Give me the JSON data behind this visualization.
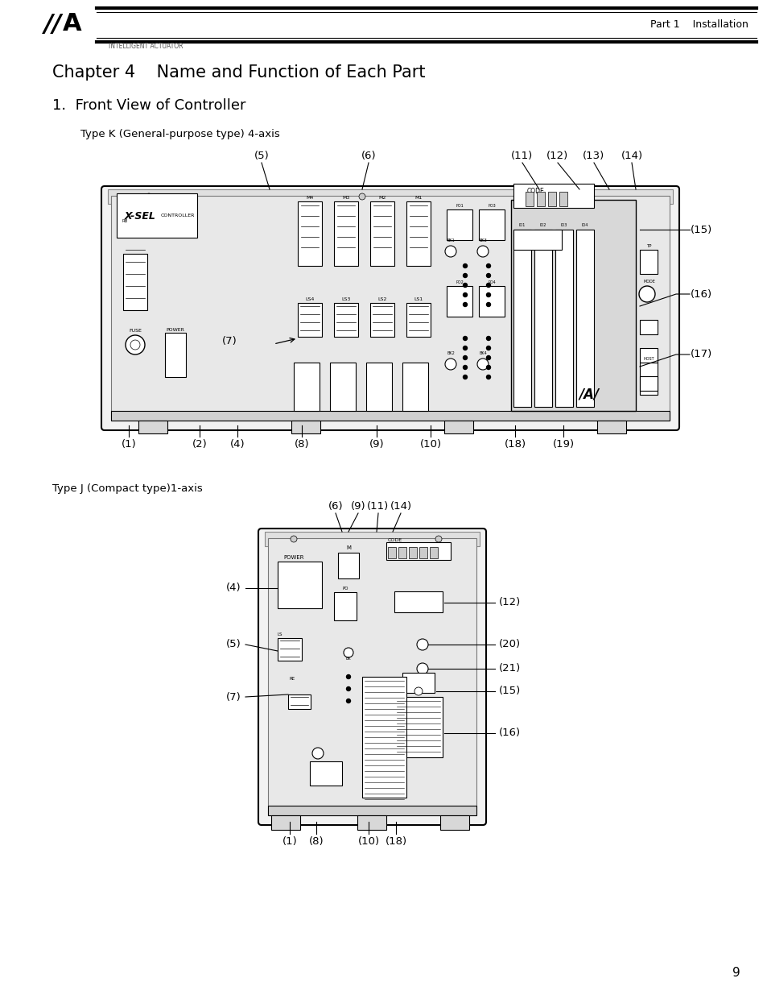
{
  "page_title": "Chapter 4    Name and Function of Each Part",
  "section_title": "1.  Front View of Controller",
  "type_k_label": "Type K (General-purpose type) 4-axis",
  "type_j_label": "Type J (Compact type)1-axis",
  "header_right": "Part 1    Installation",
  "header_company": "INTELLIGENT ACTUATOR",
  "page_number": "9",
  "bg_color": "#ffffff"
}
